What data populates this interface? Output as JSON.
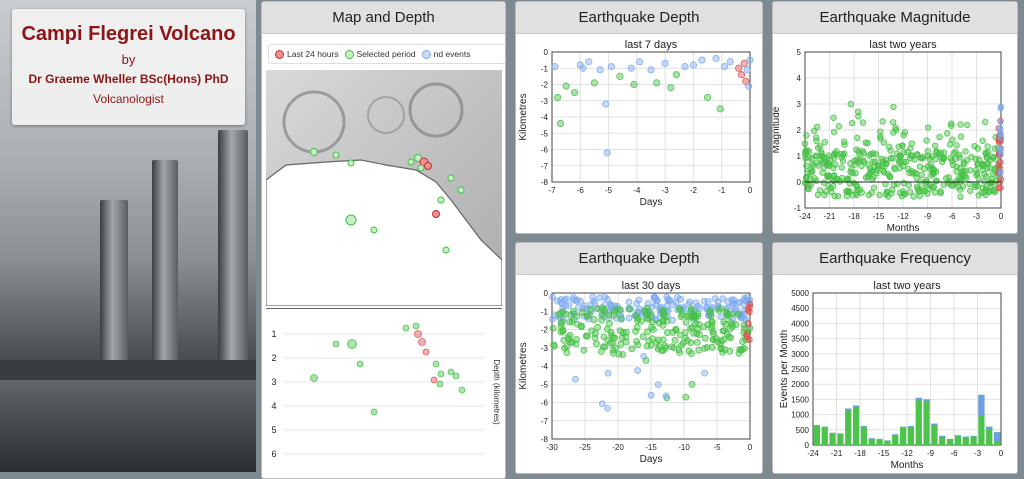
{
  "hero": {
    "title": "Campi Flegrei Volcano",
    "by": "by",
    "author": "Dr Graeme Wheller BSc(Hons) PhD",
    "role": "Volcanologist"
  },
  "colors": {
    "recent": "#e05050",
    "selected": "#44c044",
    "other": "#7faaf0",
    "title_red": "#8d1515"
  },
  "map_panel": {
    "title": "Map and Depth",
    "legend": [
      {
        "label": "Last 24 hours",
        "color": "#e05050",
        "icon": "red-dot-icon"
      },
      {
        "label": "Selected period",
        "color": "#44c044",
        "icon": "green-dot-icon"
      },
      {
        "label": "nd events",
        "color": "#7faaf0",
        "icon": "blue-dot-icon"
      }
    ],
    "depth_axis_label": "Depth (kilometres)",
    "depth_ticks": [
      "1",
      "2",
      "3",
      "4",
      "5",
      "6"
    ]
  },
  "chart_data": [
    {
      "id": "depth7",
      "type": "scatter",
      "panel_title": "Earthquake Depth",
      "title": "last 7 days",
      "xlabel": "Days",
      "ylabel": "Kilometres",
      "xlim": [
        -7,
        0
      ],
      "ylim": [
        -8,
        0
      ],
      "xticks": [
        -7,
        -6,
        -5,
        -4,
        -3,
        -2,
        -1,
        0
      ],
      "yticks": [
        0,
        -1,
        -2,
        -3,
        -4,
        -5,
        -6,
        -7,
        -8
      ],
      "points": [
        [
          -6.9,
          -0.9,
          "b"
        ],
        [
          -6.8,
          -2.8,
          "g"
        ],
        [
          -6.7,
          -4.4,
          "g"
        ],
        [
          -6.5,
          -2.1,
          "g"
        ],
        [
          -6.2,
          -2.5,
          "g"
        ],
        [
          -6.0,
          -0.8,
          "b"
        ],
        [
          -5.9,
          -1.0,
          "b"
        ],
        [
          -5.7,
          -0.6,
          "b"
        ],
        [
          -5.5,
          -1.9,
          "g"
        ],
        [
          -5.3,
          -1.1,
          "b"
        ],
        [
          -5.1,
          -3.2,
          "b"
        ],
        [
          -5.05,
          -6.2,
          "b"
        ],
        [
          -4.9,
          -0.9,
          "b"
        ],
        [
          -4.6,
          -1.5,
          "g"
        ],
        [
          -4.2,
          -1.0,
          "b"
        ],
        [
          -4.1,
          -2.0,
          "g"
        ],
        [
          -3.9,
          -0.6,
          "b"
        ],
        [
          -3.5,
          -1.1,
          "b"
        ],
        [
          -3.3,
          -1.9,
          "g"
        ],
        [
          -3.0,
          -0.7,
          "b"
        ],
        [
          -2.8,
          -2.2,
          "g"
        ],
        [
          -2.6,
          -1.4,
          "g"
        ],
        [
          -2.3,
          -0.9,
          "b"
        ],
        [
          -2.0,
          -0.8,
          "b"
        ],
        [
          -1.7,
          -0.5,
          "b"
        ],
        [
          -1.5,
          -2.8,
          "g"
        ],
        [
          -1.2,
          -0.4,
          "b"
        ],
        [
          -1.05,
          -3.5,
          "g"
        ],
        [
          -0.9,
          -0.9,
          "b"
        ],
        [
          -0.7,
          -0.6,
          "b"
        ],
        [
          -0.4,
          -1.0,
          "r"
        ],
        [
          -0.3,
          -1.4,
          "r"
        ],
        [
          -0.2,
          -0.7,
          "r"
        ],
        [
          -0.15,
          -1.8,
          "r"
        ],
        [
          -0.1,
          -1.1,
          "b"
        ],
        [
          -0.05,
          -2.1,
          "b"
        ],
        [
          0,
          -0.5,
          "b"
        ]
      ]
    },
    {
      "id": "mag2y",
      "type": "scatter",
      "panel_title": "Earthquake Magnitude",
      "title": "last two years",
      "xlabel": "Months",
      "ylabel": "Magnitude",
      "xlim": [
        -24,
        0
      ],
      "ylim": [
        -1,
        5
      ],
      "xticks": [
        -24,
        -21,
        -18,
        -15,
        -12,
        -9,
        -6,
        -3,
        0
      ],
      "yticks": [
        5,
        4,
        3,
        2,
        1,
        0,
        -1
      ]
    },
    {
      "id": "depth30",
      "type": "scatter",
      "panel_title": "Earthquake Depth",
      "title": "last 30 days",
      "xlabel": "Days",
      "ylabel": "Kilometres",
      "xlim": [
        -30,
        0
      ],
      "ylim": [
        -8,
        0
      ],
      "xticks": [
        -30,
        -25,
        -20,
        -15,
        -10,
        -5,
        0
      ],
      "yticks": [
        0,
        -1,
        -2,
        -3,
        -4,
        -5,
        -6,
        -7,
        -8
      ]
    },
    {
      "id": "freq2y",
      "type": "bar",
      "panel_title": "Earthquake Frequency",
      "title": "last two years",
      "xlabel": "Months",
      "ylabel": "Events per Month",
      "xlim": [
        -24,
        0
      ],
      "ylim": [
        0,
        5000
      ],
      "xticks": [
        -24,
        -21,
        -18,
        -15,
        -12,
        -9,
        -6,
        -3,
        0
      ],
      "yticks": [
        5000,
        4500,
        4000,
        3500,
        3000,
        2500,
        2000,
        1500,
        1000,
        500,
        0
      ],
      "values": [
        650,
        600,
        400,
        380,
        1200,
        1300,
        620,
        220,
        200,
        150,
        350,
        600,
        620,
        1550,
        1500,
        700,
        300,
        200,
        320,
        280,
        300,
        1650,
        600,
        420
      ],
      "recent_blue": [
        20,
        30,
        20,
        20,
        60,
        40,
        40,
        30,
        20,
        10,
        30,
        40,
        30,
        80,
        60,
        40,
        30,
        20,
        30,
        30,
        20,
        700,
        100,
        300
      ]
    }
  ]
}
